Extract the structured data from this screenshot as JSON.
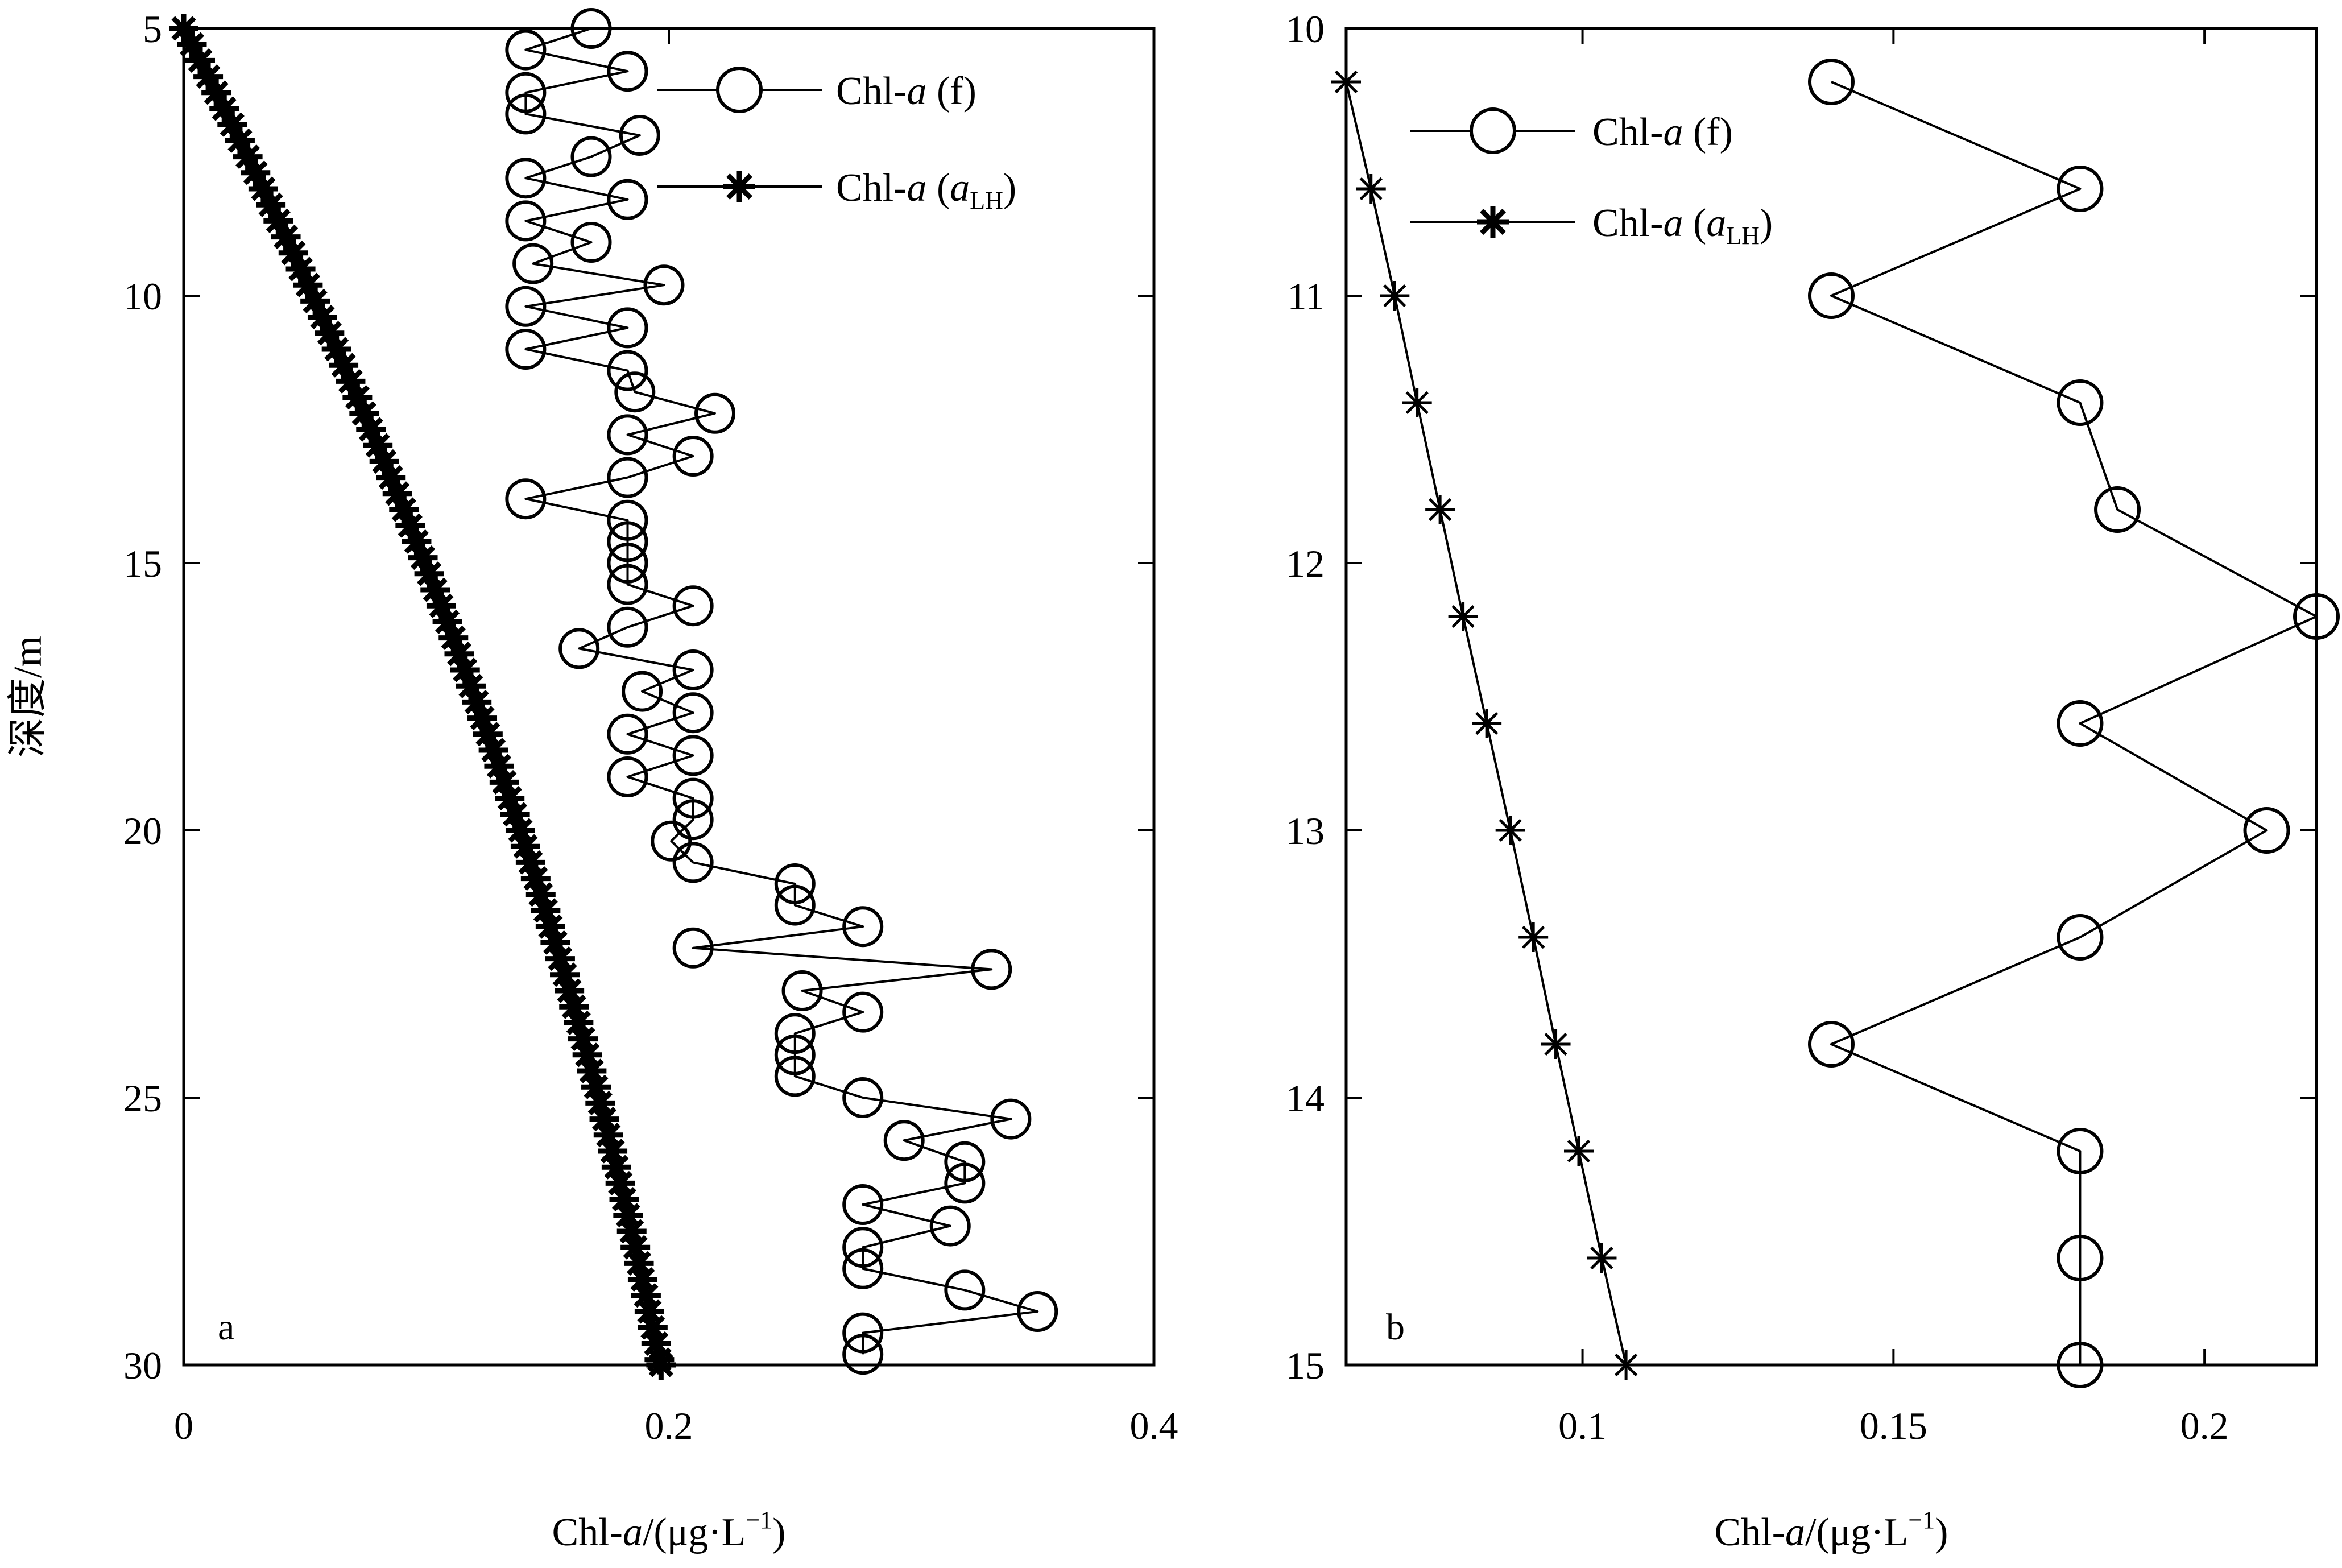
{
  "figure": {
    "ylabel": "深度/m",
    "xlabel_prefix": "Chl-",
    "xlabel_italic": "a",
    "xlabel_suffix": "/(μg·L",
    "xlabel_sup": "−1",
    "xlabel_close": ")"
  },
  "legend": {
    "f_prefix": "Chl-",
    "f_italic": "a",
    "f_suffix": " (f)",
    "alh_prefix": "Chl-",
    "alh_italic": "a",
    "alh_open": " (",
    "alh_sub_var": "a",
    "alh_sub": "LH",
    "alh_close": ")"
  },
  "chart_data": [
    {
      "type": "line",
      "panel_label": "a",
      "xlim": [
        0,
        0.4
      ],
      "ylim": [
        30,
        5
      ],
      "y_inverted": true,
      "xticks": [
        0,
        0.2,
        0.4
      ],
      "xtick_labels": [
        "0",
        "0.2",
        "0.4"
      ],
      "yticks": [
        5,
        10,
        15,
        20,
        25,
        30
      ],
      "ytick_labels": [
        "5",
        "10",
        "15",
        "20",
        "25",
        "30"
      ],
      "legend_position": "top-right",
      "series": [
        {
          "name": "Chl-a (f)",
          "marker": "circle",
          "points": [
            [
              0.168,
              5.0
            ],
            [
              0.141,
              5.4
            ],
            [
              0.183,
              5.8
            ],
            [
              0.141,
              6.2
            ],
            [
              0.141,
              6.6
            ],
            [
              0.188,
              7.0
            ],
            [
              0.168,
              7.4
            ],
            [
              0.141,
              7.8
            ],
            [
              0.183,
              8.2
            ],
            [
              0.141,
              8.6
            ],
            [
              0.168,
              9.0
            ],
            [
              0.144,
              9.4
            ],
            [
              0.198,
              9.8
            ],
            [
              0.141,
              10.2
            ],
            [
              0.183,
              10.6
            ],
            [
              0.141,
              11.0
            ],
            [
              0.183,
              11.4
            ],
            [
              0.186,
              11.8
            ],
            [
              0.219,
              12.2
            ],
            [
              0.183,
              12.6
            ],
            [
              0.21,
              13.0
            ],
            [
              0.183,
              13.4
            ],
            [
              0.141,
              13.8
            ],
            [
              0.183,
              14.2
            ],
            [
              0.183,
              14.6
            ],
            [
              0.183,
              15.0
            ],
            [
              0.183,
              15.4
            ],
            [
              0.21,
              15.8
            ],
            [
              0.183,
              16.2
            ],
            [
              0.163,
              16.6
            ],
            [
              0.21,
              17.0
            ],
            [
              0.189,
              17.4
            ],
            [
              0.21,
              17.8
            ],
            [
              0.183,
              18.2
            ],
            [
              0.21,
              18.6
            ],
            [
              0.183,
              19.0
            ],
            [
              0.21,
              19.4
            ],
            [
              0.21,
              19.8
            ],
            [
              0.201,
              20.2
            ],
            [
              0.21,
              20.6
            ],
            [
              0.252,
              21.0
            ],
            [
              0.252,
              21.4
            ],
            [
              0.28,
              21.8
            ],
            [
              0.21,
              22.2
            ],
            [
              0.333,
              22.6
            ],
            [
              0.255,
              23.0
            ],
            [
              0.28,
              23.4
            ],
            [
              0.252,
              23.8
            ],
            [
              0.252,
              24.2
            ],
            [
              0.252,
              24.6
            ],
            [
              0.28,
              25.0
            ],
            [
              0.341,
              25.4
            ],
            [
              0.297,
              25.8
            ],
            [
              0.322,
              26.2
            ],
            [
              0.322,
              26.6
            ],
            [
              0.28,
              27.0
            ],
            [
              0.316,
              27.4
            ],
            [
              0.28,
              27.8
            ],
            [
              0.28,
              28.2
            ],
            [
              0.322,
              28.6
            ],
            [
              0.352,
              29.0
            ],
            [
              0.28,
              29.4
            ],
            [
              0.28,
              29.8
            ]
          ]
        },
        {
          "name": "Chl-a (aLH)",
          "marker": "asterisk",
          "points": [
            [
              0.0,
              5.0
            ],
            [
              0.0034,
              5.3
            ],
            [
              0.0068,
              5.6
            ],
            [
              0.0101,
              5.9
            ],
            [
              0.0134,
              6.2
            ],
            [
              0.0167,
              6.5
            ],
            [
              0.02,
              6.8
            ],
            [
              0.0232,
              7.1
            ],
            [
              0.0264,
              7.4
            ],
            [
              0.0296,
              7.7
            ],
            [
              0.0328,
              8.0
            ],
            [
              0.0359,
              8.3
            ],
            [
              0.039,
              8.6
            ],
            [
              0.0421,
              8.9
            ],
            [
              0.0452,
              9.2
            ],
            [
              0.0482,
              9.5
            ],
            [
              0.0512,
              9.8
            ],
            [
              0.0542,
              10.1
            ],
            [
              0.0572,
              10.4
            ],
            [
              0.0601,
              10.7
            ],
            [
              0.063,
              11.0
            ],
            [
              0.0659,
              11.3
            ],
            [
              0.0688,
              11.6
            ],
            [
              0.0716,
              11.9
            ],
            [
              0.0744,
              12.2
            ],
            [
              0.0772,
              12.5
            ],
            [
              0.08,
              12.8
            ],
            [
              0.0827,
              13.1
            ],
            [
              0.0854,
              13.4
            ],
            [
              0.0881,
              13.7
            ],
            [
              0.0908,
              14.0
            ],
            [
              0.0934,
              14.3
            ],
            [
              0.096,
              14.6
            ],
            [
              0.0986,
              14.9
            ],
            [
              0.1012,
              15.2
            ],
            [
              0.1037,
              15.5
            ],
            [
              0.1062,
              15.8
            ],
            [
              0.1087,
              16.1
            ],
            [
              0.1112,
              16.4
            ],
            [
              0.1136,
              16.7
            ],
            [
              0.116,
              17.0
            ],
            [
              0.1184,
              17.3
            ],
            [
              0.1208,
              17.6
            ],
            [
              0.1231,
              17.9
            ],
            [
              0.1254,
              18.2
            ],
            [
              0.1277,
              18.5
            ],
            [
              0.13,
              18.8
            ],
            [
              0.1322,
              19.1
            ],
            [
              0.1344,
              19.4
            ],
            [
              0.1366,
              19.7
            ],
            [
              0.1388,
              20.0
            ],
            [
              0.1409,
              20.3
            ],
            [
              0.143,
              20.6
            ],
            [
              0.1451,
              20.9
            ],
            [
              0.1472,
              21.2
            ],
            [
              0.1492,
              21.5
            ],
            [
              0.1512,
              21.8
            ],
            [
              0.1532,
              22.1
            ],
            [
              0.1552,
              22.4
            ],
            [
              0.1571,
              22.7
            ],
            [
              0.159,
              23.0
            ],
            [
              0.1609,
              23.3
            ],
            [
              0.1628,
              23.6
            ],
            [
              0.1646,
              23.9
            ],
            [
              0.1664,
              24.2
            ],
            [
              0.1682,
              24.5
            ],
            [
              0.17,
              24.8
            ],
            [
              0.1717,
              25.1
            ],
            [
              0.1734,
              25.4
            ],
            [
              0.1751,
              25.7
            ],
            [
              0.1768,
              26.0
            ],
            [
              0.1784,
              26.3
            ],
            [
              0.18,
              26.6
            ],
            [
              0.1816,
              26.9
            ],
            [
              0.1832,
              27.2
            ],
            [
              0.1847,
              27.5
            ],
            [
              0.1862,
              27.8
            ],
            [
              0.1877,
              28.1
            ],
            [
              0.1892,
              28.4
            ],
            [
              0.1906,
              28.7
            ],
            [
              0.192,
              29.0
            ],
            [
              0.1934,
              29.3
            ],
            [
              0.1948,
              29.6
            ],
            [
              0.1961,
              29.9
            ],
            [
              0.1968,
              30.0
            ]
          ]
        }
      ]
    },
    {
      "type": "line",
      "panel_label": "b",
      "xlim": [
        0.062,
        0.218
      ],
      "ylim": [
        15,
        10
      ],
      "y_inverted": true,
      "xticks": [
        0.1,
        0.15,
        0.2
      ],
      "xtick_labels": [
        "0.1",
        "0.15",
        "0.2"
      ],
      "yticks": [
        10,
        11,
        12,
        13,
        14,
        15
      ],
      "ytick_labels": [
        "10",
        "11",
        "12",
        "13",
        "14",
        "15"
      ],
      "legend_position": "top-left",
      "series": [
        {
          "name": "Chl-a (f)",
          "marker": "circle",
          "points": [
            [
              0.14,
              10.2
            ],
            [
              0.18,
              10.6
            ],
            [
              0.14,
              11.0
            ],
            [
              0.18,
              11.4
            ],
            [
              0.186,
              11.8
            ],
            [
              0.218,
              12.2
            ],
            [
              0.18,
              12.6
            ],
            [
              0.21,
              13.0
            ],
            [
              0.18,
              13.4
            ],
            [
              0.14,
              13.8
            ],
            [
              0.18,
              14.2
            ],
            [
              0.18,
              14.6
            ],
            [
              0.18,
              15.0
            ]
          ]
        },
        {
          "name": "Chl-a (aLH)",
          "marker": "asterisk",
          "points": [
            [
              0.062,
              10.2
            ],
            [
              0.066,
              10.6
            ],
            [
              0.0698,
              11.0
            ],
            [
              0.0734,
              11.4
            ],
            [
              0.0771,
              11.8
            ],
            [
              0.0808,
              12.2
            ],
            [
              0.0846,
              12.6
            ],
            [
              0.0884,
              13.0
            ],
            [
              0.0921,
              13.4
            ],
            [
              0.0957,
              13.8
            ],
            [
              0.0994,
              14.2
            ],
            [
              0.1031,
              14.6
            ],
            [
              0.107,
              15.0
            ]
          ]
        }
      ]
    }
  ]
}
